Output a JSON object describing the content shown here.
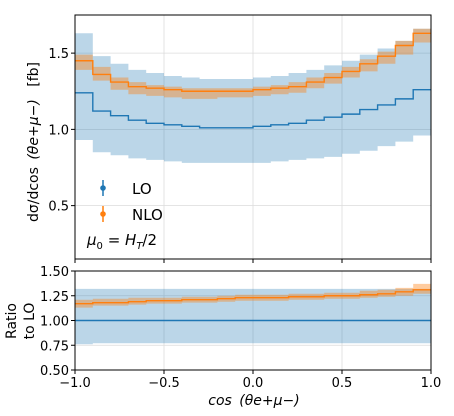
{
  "chart_data": [
    {
      "type": "line",
      "panel": "main",
      "ylabel": "dσ/dcos (θ_e⁺μ⁻)  [fb]",
      "ylabel_main": "dσ/dcos",
      "ylabel_arg": "(θe+μ−)",
      "ylabel_unit": "[fb]",
      "xlim": [
        -1.0,
        1.0
      ],
      "ylim": [
        0.15,
        1.75
      ],
      "yticks": [
        "0.5",
        "1.0",
        "1.5"
      ],
      "grid": true,
      "legend_position": "lower-left",
      "legend": [
        "LO",
        "NLO"
      ],
      "annotation": "μ0 = HT/2",
      "bin_edges": [
        -1.0,
        -0.9,
        -0.8,
        -0.7,
        -0.6,
        -0.5,
        -0.4,
        -0.3,
        -0.2,
        -0.1,
        0.0,
        0.1,
        0.2,
        0.3,
        0.4,
        0.5,
        0.6,
        0.7,
        0.8,
        0.9,
        1.0
      ],
      "series": [
        {
          "name": "LO",
          "color": "#1f77b4",
          "values": [
            1.24,
            1.12,
            1.09,
            1.06,
            1.04,
            1.03,
            1.02,
            1.01,
            1.01,
            1.01,
            1.02,
            1.03,
            1.04,
            1.06,
            1.08,
            1.1,
            1.13,
            1.16,
            1.2,
            1.26,
            1.21
          ],
          "band_lo": [
            0.93,
            0.85,
            0.83,
            0.81,
            0.8,
            0.79,
            0.78,
            0.78,
            0.78,
            0.78,
            0.78,
            0.79,
            0.8,
            0.81,
            0.82,
            0.84,
            0.86,
            0.89,
            0.92,
            0.96,
            0.93
          ],
          "band_hi": [
            1.63,
            1.48,
            1.43,
            1.39,
            1.37,
            1.35,
            1.34,
            1.33,
            1.33,
            1.33,
            1.34,
            1.35,
            1.37,
            1.39,
            1.42,
            1.45,
            1.49,
            1.53,
            1.58,
            1.66,
            1.6
          ]
        },
        {
          "name": "NLO",
          "color": "#ff7f0e",
          "values": [
            1.45,
            1.36,
            1.31,
            1.28,
            1.27,
            1.26,
            1.25,
            1.25,
            1.25,
            1.25,
            1.26,
            1.27,
            1.28,
            1.31,
            1.34,
            1.38,
            1.43,
            1.48,
            1.55,
            1.63,
            1.62
          ],
          "band_lo": [
            1.39,
            1.32,
            1.26,
            1.23,
            1.22,
            1.21,
            1.2,
            1.2,
            1.21,
            1.21,
            1.22,
            1.23,
            1.24,
            1.27,
            1.3,
            1.34,
            1.38,
            1.43,
            1.49,
            1.57,
            1.56
          ],
          "band_hi": [
            1.49,
            1.41,
            1.34,
            1.31,
            1.29,
            1.28,
            1.27,
            1.27,
            1.27,
            1.27,
            1.28,
            1.29,
            1.31,
            1.34,
            1.37,
            1.41,
            1.46,
            1.51,
            1.58,
            1.66,
            1.65
          ]
        }
      ]
    },
    {
      "type": "line",
      "panel": "ratio",
      "ylabel_lines": [
        "Ratio",
        "to LO"
      ],
      "xlabel_main": "cos",
      "xlabel_arg": "(θe+μ−)",
      "xlim": [
        -1.0,
        1.0
      ],
      "ylim": [
        0.5,
        1.5
      ],
      "xticks": [
        "−1.0",
        "−0.5",
        "0.0",
        "0.5",
        "1.0"
      ],
      "xtick_values": [
        -1.0,
        -0.5,
        0.0,
        0.5,
        1.0
      ],
      "yticks": [
        "0.50",
        "0.75",
        "1.00",
        "1.25",
        "1.50"
      ],
      "ytick_values": [
        0.5,
        0.75,
        1.0,
        1.25,
        1.5
      ],
      "grid": true,
      "bin_edges": [
        -1.0,
        -0.9,
        -0.8,
        -0.7,
        -0.6,
        -0.5,
        -0.4,
        -0.3,
        -0.2,
        -0.1,
        0.0,
        0.1,
        0.2,
        0.3,
        0.4,
        0.5,
        0.6,
        0.7,
        0.8,
        0.9,
        1.0
      ],
      "series": [
        {
          "name": "LO",
          "color": "#1f77b4",
          "values": [
            1.0,
            1.0,
            1.0,
            1.0,
            1.0,
            1.0,
            1.0,
            1.0,
            1.0,
            1.0,
            1.0,
            1.0,
            1.0,
            1.0,
            1.0,
            1.0,
            1.0,
            1.0,
            1.0,
            1.0,
            1.0
          ],
          "band_lo": [
            0.76,
            0.77,
            0.77,
            0.77,
            0.77,
            0.77,
            0.77,
            0.77,
            0.77,
            0.77,
            0.77,
            0.77,
            0.77,
            0.77,
            0.77,
            0.77,
            0.77,
            0.77,
            0.77,
            0.77,
            0.77
          ],
          "band_hi": [
            1.32,
            1.32,
            1.32,
            1.32,
            1.32,
            1.32,
            1.32,
            1.32,
            1.32,
            1.32,
            1.32,
            1.32,
            1.32,
            1.32,
            1.32,
            1.32,
            1.32,
            1.32,
            1.32,
            1.32,
            1.32
          ]
        },
        {
          "name": "NLO",
          "color": "#ff7f0e",
          "values": [
            1.17,
            1.18,
            1.18,
            1.19,
            1.2,
            1.2,
            1.21,
            1.21,
            1.22,
            1.23,
            1.23,
            1.23,
            1.24,
            1.24,
            1.25,
            1.25,
            1.26,
            1.27,
            1.29,
            1.31,
            1.33
          ],
          "band_lo": [
            1.13,
            1.15,
            1.15,
            1.16,
            1.17,
            1.17,
            1.18,
            1.18,
            1.19,
            1.2,
            1.2,
            1.2,
            1.21,
            1.21,
            1.22,
            1.22,
            1.23,
            1.24,
            1.25,
            1.27,
            1.29
          ],
          "band_hi": [
            1.21,
            1.22,
            1.22,
            1.23,
            1.23,
            1.23,
            1.24,
            1.24,
            1.25,
            1.26,
            1.26,
            1.26,
            1.27,
            1.27,
            1.28,
            1.28,
            1.3,
            1.31,
            1.33,
            1.37,
            1.39
          ]
        }
      ]
    }
  ]
}
